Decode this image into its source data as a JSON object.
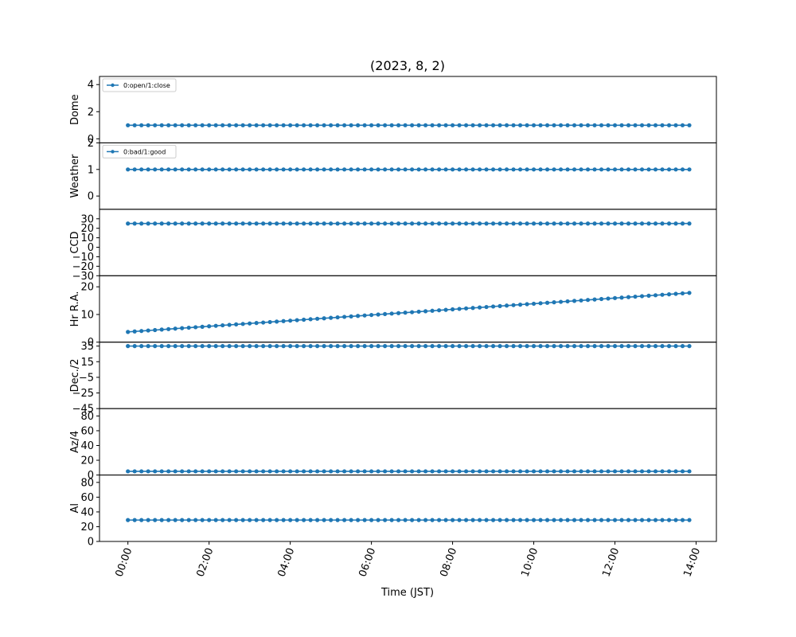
{
  "chart_data": {
    "type": "line",
    "title": "(2023, 8, 2)",
    "xlabel": "Time (JST)",
    "x_tick_labels": [
      "00:00",
      "02:00",
      "04:00",
      "06:00",
      "08:00",
      "10:00",
      "12:00",
      "14:00"
    ],
    "x_start": "00:00",
    "x_end": "13:50",
    "x_step_minutes": 10,
    "x_range_hours": [
      -0.7,
      14.5
    ],
    "line_color": "#1f77b4",
    "marker": "circle",
    "grid": false,
    "panels": [
      {
        "ylabel": "Dome",
        "ylim": [
          -0.3,
          4.6
        ],
        "yticks": [
          0,
          2,
          4
        ],
        "values": "constant",
        "value": 1,
        "legend": "0:open/1:close",
        "legend_position": "upper-left"
      },
      {
        "ylabel": "Weather",
        "ylim": [
          -0.5,
          2
        ],
        "yticks": [
          0,
          1,
          2
        ],
        "values": "constant",
        "value": 1,
        "legend": "0:bad/1:good",
        "legend_position": "upper-left"
      },
      {
        "ylabel": "CCD",
        "ylim": [
          -30,
          40
        ],
        "yticks": [
          -30,
          -20,
          -10,
          0,
          10,
          20,
          30
        ],
        "values": "constant",
        "value": 25
      },
      {
        "ylabel": "Hr R.A.",
        "ylim": [
          0,
          24
        ],
        "yticks": [
          0,
          10,
          20
        ],
        "values": "linear",
        "start_value": 3.7,
        "end_value": 17.8
      },
      {
        "ylabel": "Dec./2",
        "ylim": [
          -45,
          40
        ],
        "yticks": [
          -45,
          -25,
          -5,
          15,
          35
        ],
        "values": "constant",
        "value": 35
      },
      {
        "ylabel": "Az/4",
        "ylim": [
          0,
          90
        ],
        "yticks": [
          0,
          20,
          40,
          60,
          80
        ],
        "values": "constant",
        "value": 5
      },
      {
        "ylabel": "Al",
        "ylim": [
          0,
          90
        ],
        "yticks": [
          0,
          20,
          40,
          60,
          80
        ],
        "values": "constant",
        "value": 29
      }
    ]
  }
}
